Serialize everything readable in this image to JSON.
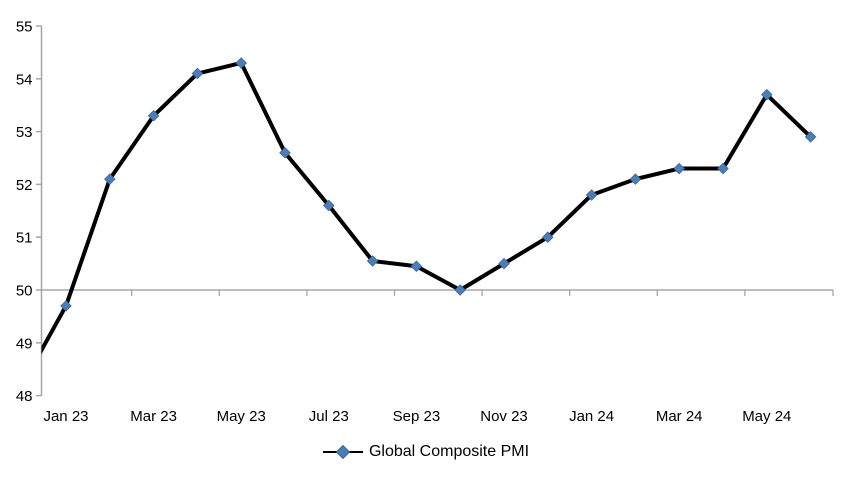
{
  "chart_data": {
    "type": "line",
    "title": "",
    "legend": {
      "label": "Global Composite PMI",
      "position": "bottom-center"
    },
    "x_categories": [
      "Dec 22",
      "Jan 23",
      "Feb 23",
      "Mar 23",
      "Apr 23",
      "May 23",
      "Jun 23",
      "Jul 23",
      "Aug 23",
      "Sep 23",
      "Oct 23",
      "Nov 23",
      "Dec 23",
      "Jan 24",
      "Feb 24",
      "Mar 24",
      "Apr 24",
      "May 24",
      "Jun 24"
    ],
    "values": [
      48.2,
      49.7,
      52.1,
      53.3,
      54.1,
      54.3,
      52.6,
      51.6,
      50.55,
      50.45,
      50.0,
      50.5,
      51.0,
      51.8,
      52.1,
      52.3,
      52.3,
      53.7,
      52.9
    ],
    "first_point_clipped_at_left_edge": true,
    "x_tick_labels": [
      "Jan 23",
      "Mar 23",
      "May 23",
      "Jul 23",
      "Sep 23",
      "Nov 23",
      "Jan 24",
      "Mar 24",
      "May 24"
    ],
    "x_label_every_n_categories": 2,
    "y_ticks": [
      48,
      49,
      50,
      51,
      52,
      53,
      54,
      55
    ],
    "ylim": [
      48,
      55
    ],
    "threshold_line_y": 50,
    "grid": "single horizontal category-axis line at 50 with down ticks every 2 months; no other gridlines",
    "colors": {
      "series_line": "#000000",
      "marker_fill": "#4A7EBB",
      "marker_edge": "#3A679C",
      "axis": "#A6A6A6",
      "threshold_line": "#969696",
      "text": "#000000",
      "background": "#FFFFFF"
    }
  }
}
